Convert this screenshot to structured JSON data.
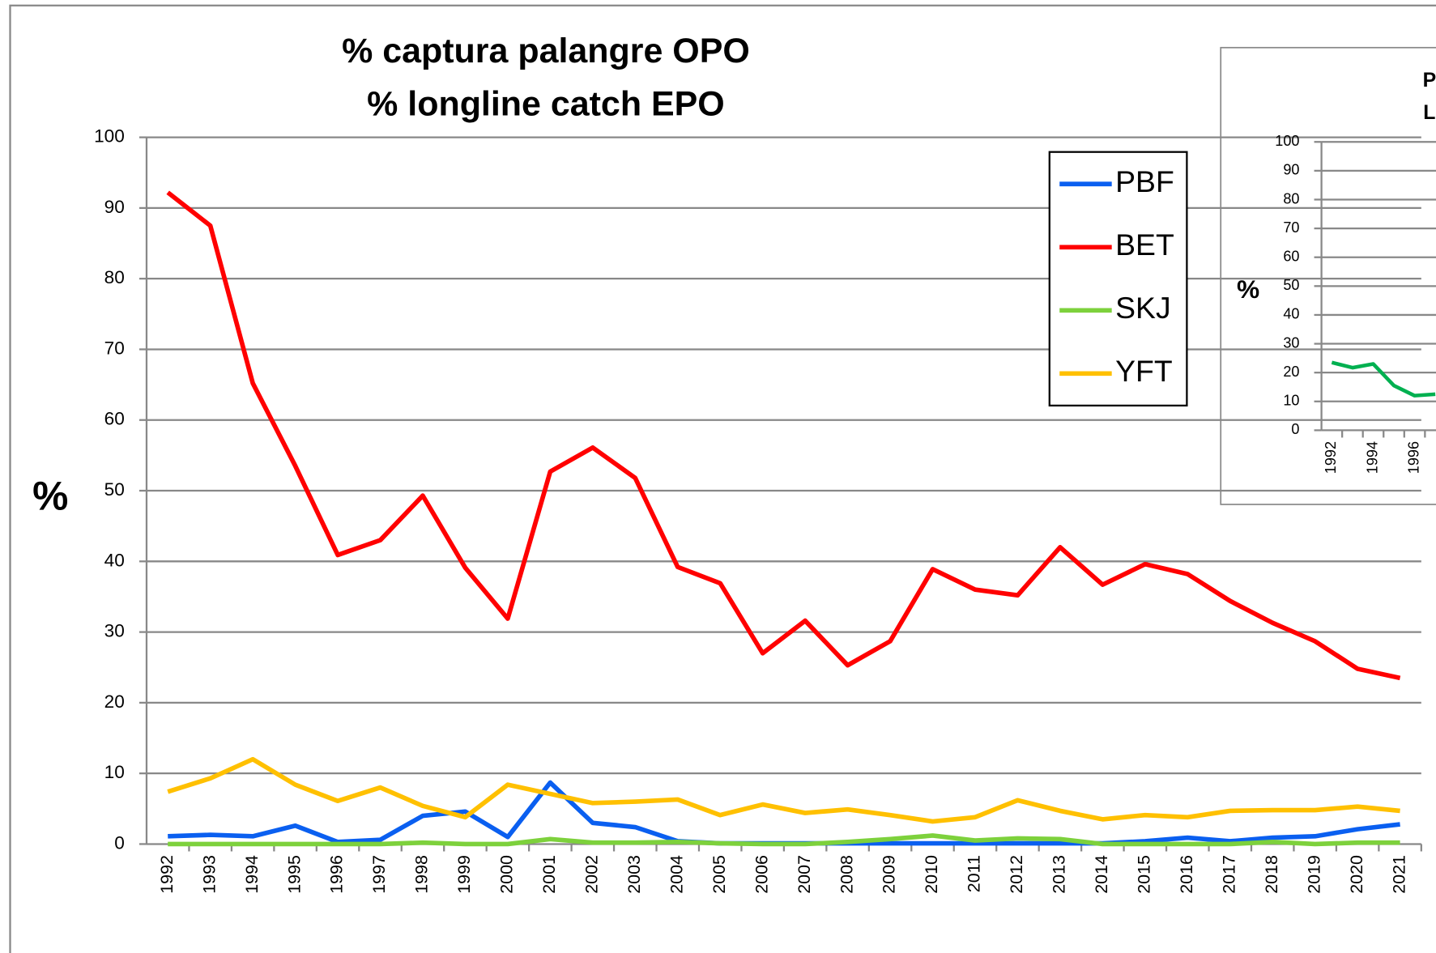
{
  "chart_data": [
    {
      "type": "line",
      "title": [
        "% captura palangre OPO",
        "% longline catch EPO"
      ],
      "y_label": "%",
      "categories": [
        "1992",
        "1993",
        "1994",
        "1995",
        "1996",
        "1997",
        "1998",
        "1999",
        "2000",
        "2001",
        "2002",
        "2003",
        "2004",
        "2005",
        "2006",
        "2007",
        "2008",
        "2009",
        "2010",
        "2011",
        "2012",
        "2013",
        "2014",
        "2015",
        "2016",
        "2017",
        "2018",
        "2019",
        "2020",
        "2021"
      ],
      "series": [
        {
          "name": "PBF",
          "color": "#0a5ff0",
          "values": [
            1.1,
            1.3,
            1.1,
            2.6,
            0.3,
            0.6,
            4.0,
            4.6,
            1.0,
            8.7,
            3.0,
            2.4,
            0.4,
            0.1,
            0.1,
            0.1,
            0.1,
            0.1,
            0.1,
            0.1,
            0.1,
            0.1,
            0.1,
            0.4,
            0.9,
            0.4,
            0.9,
            1.1,
            2.1,
            2.8
          ]
        },
        {
          "name": "BET",
          "color": "#ff0000",
          "values": [
            92.2,
            87.5,
            65.2,
            53.5,
            40.9,
            43.0,
            49.3,
            39.1,
            31.9,
            52.7,
            56.1,
            51.8,
            39.2,
            36.9,
            27.0,
            31.6,
            25.3,
            28.7,
            38.9,
            36.0,
            35.2,
            42.0,
            36.7,
            39.6,
            38.2,
            34.4,
            31.3,
            28.7,
            24.8,
            23.5
          ]
        },
        {
          "name": "SKJ",
          "color": "#7dd13c",
          "values": [
            0,
            0,
            0,
            0,
            0,
            0,
            0.2,
            0,
            0,
            0.7,
            0.2,
            0.2,
            0.3,
            0.1,
            0,
            0,
            0.3,
            0.7,
            1.2,
            0.5,
            0.8,
            0.7,
            0,
            0,
            0,
            0,
            0.3,
            0,
            0.2,
            0.2
          ]
        },
        {
          "name": "YFT",
          "color": "#ffc000",
          "values": [
            7.4,
            9.3,
            12.0,
            8.4,
            6.1,
            8.0,
            5.4,
            3.8,
            8.4,
            7.1,
            5.8,
            6.0,
            6.3,
            4.1,
            5.6,
            4.4,
            4.9,
            4.1,
            3.2,
            3.8,
            6.2,
            4.7,
            3.5,
            4.1,
            3.8,
            4.7,
            4.8,
            4.8,
            5.3,
            4.7
          ]
        }
      ],
      "ylim": [
        0,
        100
      ],
      "yticks": [
        0,
        10,
        20,
        30,
        40,
        50,
        60,
        70,
        80,
        90,
        100
      ],
      "grid": true
    },
    {
      "type": "line",
      "title": [
        "Palangre",
        "Longline"
      ],
      "y_label": "%",
      "categories": [
        "1992",
        null,
        "1994",
        null,
        "1996",
        null
      ],
      "series": [
        {
          "color": "#00b050",
          "values": [
            23.5,
            21.7,
            23.0,
            15.5,
            12.0,
            12.5
          ]
        }
      ],
      "ylim": [
        0,
        100
      ],
      "yticks": [
        0,
        10,
        20,
        30,
        40,
        50,
        60,
        70,
        80,
        90,
        100
      ],
      "grid": true
    }
  ]
}
